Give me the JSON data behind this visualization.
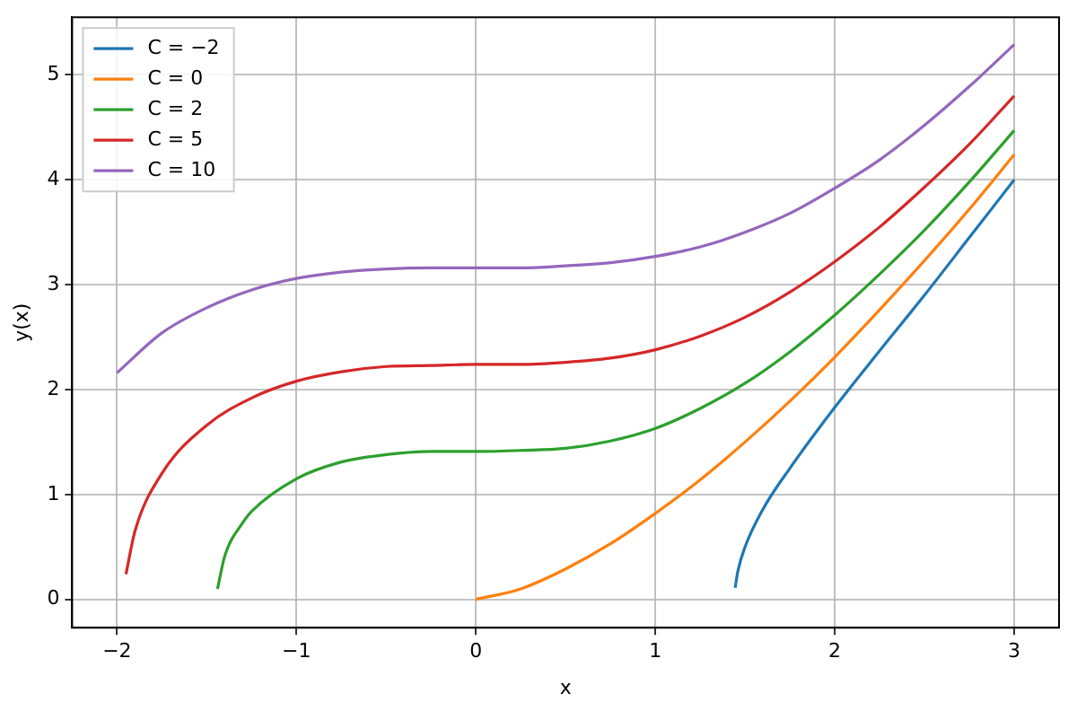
{
  "chart_data": {
    "type": "line",
    "xlabel": "x",
    "ylabel": "y(x)",
    "xlim": [
      -2.25,
      3.25
    ],
    "ylim": [
      -0.27,
      5.55
    ],
    "xticks": [
      -2,
      -1,
      0,
      1,
      2,
      3
    ],
    "yticks": [
      0,
      1,
      2,
      3,
      4,
      5
    ],
    "grid": true,
    "legend": "top left",
    "marker": "none",
    "line_style": "solid",
    "series": [
      {
        "name": "C = −2",
        "color": "#1f77b4",
        "x": [
          1.445,
          1.46,
          1.5,
          1.6,
          1.75,
          2,
          2.25,
          2.5,
          2.75,
          3
        ],
        "values": [
          0.11,
          0.27,
          0.5,
          0.86,
          1.25,
          1.83,
          2.37,
          2.9,
          3.45,
          4
        ]
      },
      {
        "name": "C = 0",
        "color": "#ff7f0e",
        "x": [
          0,
          0.25,
          0.5,
          0.75,
          1,
          1.25,
          1.5,
          1.75,
          2,
          2.25,
          2.5,
          2.75,
          3
        ],
        "values": [
          0,
          0.1,
          0.29,
          0.53,
          0.82,
          1.14,
          1.5,
          1.89,
          2.31,
          2.76,
          3.23,
          3.72,
          4.24
        ]
      },
      {
        "name": "C = 2",
        "color": "#2ca02c",
        "x": [
          -1.44,
          -1.4,
          -1.3,
          -1.25,
          -1,
          -0.75,
          -0.5,
          -0.25,
          0,
          0.25,
          0.5,
          0.75,
          1,
          1.25,
          1.5,
          1.75,
          2,
          2.25,
          2.5,
          2.75,
          3
        ],
        "values": [
          0.1,
          0.41,
          0.73,
          0.84,
          1.15,
          1.31,
          1.38,
          1.41,
          1.41,
          1.42,
          1.44,
          1.51,
          1.63,
          1.82,
          2.06,
          2.36,
          2.71,
          3.1,
          3.52,
          3.98,
          4.47
        ]
      },
      {
        "name": "C = 5",
        "color": "#d62728",
        "x": [
          -1.95,
          -1.9,
          -1.75,
          -1.5,
          -1.25,
          -1,
          -0.75,
          -0.5,
          -0.25,
          0,
          0.25,
          0.5,
          0.75,
          1,
          1.25,
          1.5,
          1.75,
          2,
          2.25,
          2.5,
          2.75,
          3
        ],
        "values": [
          0.24,
          0.65,
          1.2,
          1.66,
          1.92,
          2.08,
          2.17,
          2.22,
          2.23,
          2.24,
          2.24,
          2.26,
          2.3,
          2.38,
          2.51,
          2.69,
          2.93,
          3.22,
          3.55,
          3.93,
          4.34,
          4.8
        ]
      },
      {
        "name": "C = 10",
        "color": "#9467bd",
        "x": [
          -2,
          -1.75,
          -1.5,
          -1.25,
          -1,
          -0.75,
          -0.5,
          -0.25,
          0,
          0.25,
          0.5,
          0.75,
          1,
          1.25,
          1.5,
          1.75,
          2,
          2.25,
          2.5,
          2.75,
          3
        ],
        "values": [
          2.16,
          2.54,
          2.78,
          2.95,
          3.06,
          3.12,
          3.15,
          3.16,
          3.16,
          3.16,
          3.18,
          3.21,
          3.27,
          3.36,
          3.5,
          3.68,
          3.92,
          4.19,
          4.52,
          4.89,
          5.29
        ]
      }
    ]
  }
}
